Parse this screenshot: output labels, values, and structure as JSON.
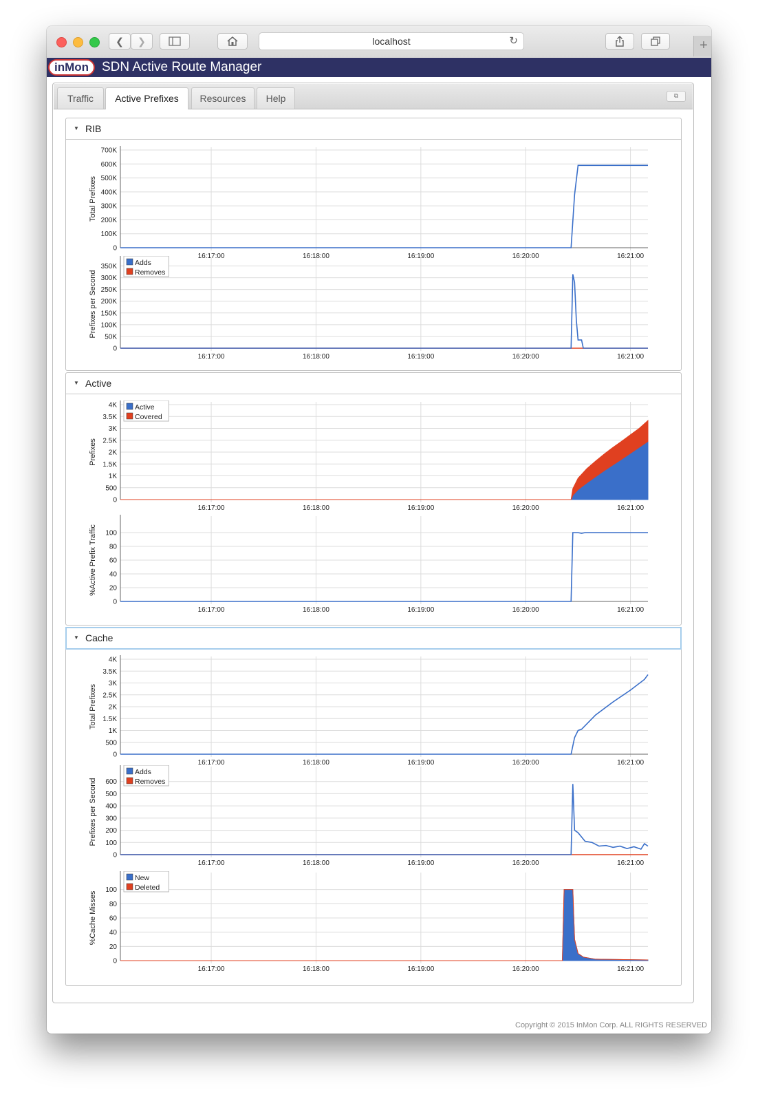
{
  "browser": {
    "address": "localhost",
    "icons": {
      "back": "back-chevron-icon",
      "forward": "forward-chevron-icon",
      "sidebar": "sidebar-icon",
      "home": "home-icon",
      "reload": "reload-icon",
      "share": "share-icon",
      "tabs": "tabs-icon",
      "newtab": "plus-icon"
    },
    "light_colors": [
      "#fc605c",
      "#fdbc40",
      "#34c84a"
    ]
  },
  "app": {
    "logo_text": "inMon",
    "title": "SDN Active Route Manager",
    "bar_color": "#2e3164"
  },
  "tabs": [
    {
      "label": "Traffic"
    },
    {
      "label": "Active Prefixes",
      "active": true
    },
    {
      "label": "Resources"
    },
    {
      "label": "Help"
    }
  ],
  "sections": [
    {
      "title": "RIB"
    },
    {
      "title": "Active"
    },
    {
      "title": "Cache"
    }
  ],
  "time_ticks": [
    "16:17:00",
    "16:18:00",
    "16:19:00",
    "16:20:00",
    "16:21:00"
  ],
  "colors": {
    "blue": "#3a6fc9",
    "red": "#e04020"
  },
  "footer": {
    "copyright": "Copyright © 2015 InMon Corp. ALL RIGHTS RESERVED"
  },
  "chart_data": [
    {
      "id": "rib-total",
      "type": "line",
      "ylabel": "Total Prefixes",
      "yticks": [
        "0",
        "100K",
        "200K",
        "300K",
        "400K",
        "500K",
        "600K",
        "700K"
      ],
      "ylim": [
        0,
        700000
      ],
      "x": [
        "16:16:08",
        "16:20:26",
        "16:20:28",
        "16:20:30",
        "16:21:10"
      ],
      "series": [
        {
          "color": "#3a6fc9",
          "values": [
            0,
            0,
            380000,
            590000,
            590000
          ]
        }
      ]
    },
    {
      "id": "rib-rate",
      "type": "line",
      "ylabel": "Prefixes per Second",
      "yticks": [
        "0",
        "50K",
        "100K",
        "150K",
        "200K",
        "250K",
        "300K",
        "350K"
      ],
      "ylim": [
        0,
        375000
      ],
      "legend": [
        "Adds",
        "Removes"
      ],
      "x": [
        "16:16:08",
        "16:20:26",
        "16:20:27",
        "16:20:28",
        "16:20:29",
        "16:20:30",
        "16:20:32",
        "16:20:33",
        "16:21:10"
      ],
      "series": [
        {
          "name": "Adds",
          "color": "#3a6fc9",
          "values": [
            0,
            0,
            315000,
            280000,
            120000,
            35000,
            35000,
            0,
            0
          ]
        },
        {
          "name": "Removes",
          "color": "#e04020",
          "values": [
            0,
            0,
            0,
            0,
            0,
            0,
            0,
            0,
            0
          ]
        }
      ]
    },
    {
      "id": "active-prefixes",
      "type": "area",
      "ylabel": "Prefixes",
      "yticks": [
        "0",
        "500",
        "1K",
        "1.5K",
        "2K",
        "2.5K",
        "3K",
        "3.5K",
        "4K"
      ],
      "ylim": [
        0,
        4000
      ],
      "legend": [
        "Active",
        "Covered"
      ],
      "x": [
        "16:16:08",
        "16:20:26",
        "16:20:27",
        "16:20:30",
        "16:20:35",
        "16:20:40",
        "16:20:45",
        "16:20:50",
        "16:20:55",
        "16:21:00",
        "16:21:05",
        "16:21:10"
      ],
      "series": [
        {
          "name": "Active",
          "color": "#3a6fc9",
          "values": [
            0,
            0,
            180,
            420,
            700,
            960,
            1220,
            1460,
            1700,
            1950,
            2200,
            2450
          ]
        },
        {
          "name": "Covered",
          "color": "#e04020",
          "values": [
            0,
            0,
            280,
            480,
            600,
            660,
            700,
            740,
            760,
            780,
            800,
            880
          ]
        }
      ]
    },
    {
      "id": "active-traffic",
      "type": "line",
      "ylabel": "%Active Prefix Traffic",
      "yticks": [
        "0",
        "20",
        "40",
        "60",
        "80",
        "100"
      ],
      "ylim": [
        0,
        120
      ],
      "x": [
        "16:16:08",
        "16:20:26",
        "16:20:27",
        "16:20:30",
        "16:20:32",
        "16:20:34",
        "16:21:10"
      ],
      "series": [
        {
          "color": "#3a6fc9",
          "values": [
            0,
            0,
            100,
            100,
            99,
            100,
            100
          ]
        }
      ]
    },
    {
      "id": "cache-total",
      "type": "line",
      "ylabel": "Total Prefixes",
      "yticks": [
        "0",
        "500",
        "1K",
        "1.5K",
        "2K",
        "2.5K",
        "3K",
        "3.5K",
        "4K"
      ],
      "ylim": [
        0,
        4000
      ],
      "x": [
        "16:16:08",
        "16:20:26",
        "16:20:28",
        "16:20:30",
        "16:20:32",
        "16:20:40",
        "16:20:50",
        "16:21:00",
        "16:21:08",
        "16:21:10"
      ],
      "series": [
        {
          "color": "#3a6fc9",
          "values": [
            0,
            0,
            700,
            1000,
            1050,
            1650,
            2200,
            2700,
            3150,
            3350
          ]
        }
      ]
    },
    {
      "id": "cache-rate",
      "type": "line",
      "ylabel": "Prefixes per Second",
      "yticks": [
        "0",
        "100",
        "200",
        "300",
        "400",
        "500",
        "600"
      ],
      "ylim": [
        0,
        700
      ],
      "legend": [
        "Adds",
        "Removes"
      ],
      "x": [
        "16:16:08",
        "16:20:26",
        "16:20:27",
        "16:20:28",
        "16:20:30",
        "16:20:34",
        "16:20:38",
        "16:20:42",
        "16:20:46",
        "16:20:50",
        "16:20:54",
        "16:20:58",
        "16:21:02",
        "16:21:06",
        "16:21:08",
        "16:21:10"
      ],
      "series": [
        {
          "name": "Adds",
          "color": "#3a6fc9",
          "values": [
            0,
            0,
            580,
            200,
            180,
            110,
            100,
            70,
            75,
            60,
            70,
            50,
            65,
            45,
            90,
            70
          ]
        },
        {
          "name": "Removes",
          "color": "#e04020",
          "values": [
            0,
            0,
            0,
            0,
            0,
            0,
            0,
            0,
            0,
            0,
            0,
            0,
            0,
            0,
            0,
            0
          ]
        }
      ]
    },
    {
      "id": "cache-misses",
      "type": "area",
      "ylabel": "%Cache Misses",
      "yticks": [
        "0",
        "20",
        "40",
        "60",
        "80",
        "100"
      ],
      "ylim": [
        0,
        120
      ],
      "legend": [
        "New",
        "Deleted"
      ],
      "x": [
        "16:16:08",
        "16:20:21",
        "16:20:22",
        "16:20:27",
        "16:20:28",
        "16:20:30",
        "16:20:33",
        "16:20:40",
        "16:21:10"
      ],
      "series": [
        {
          "name": "New",
          "color": "#3a6fc9",
          "values": [
            0,
            0,
            100,
            100,
            30,
            10,
            5,
            2,
            1
          ]
        },
        {
          "name": "Deleted",
          "color": "#e04020",
          "values": [
            0,
            0,
            0,
            0,
            0,
            0,
            0,
            0,
            0
          ]
        }
      ]
    }
  ]
}
